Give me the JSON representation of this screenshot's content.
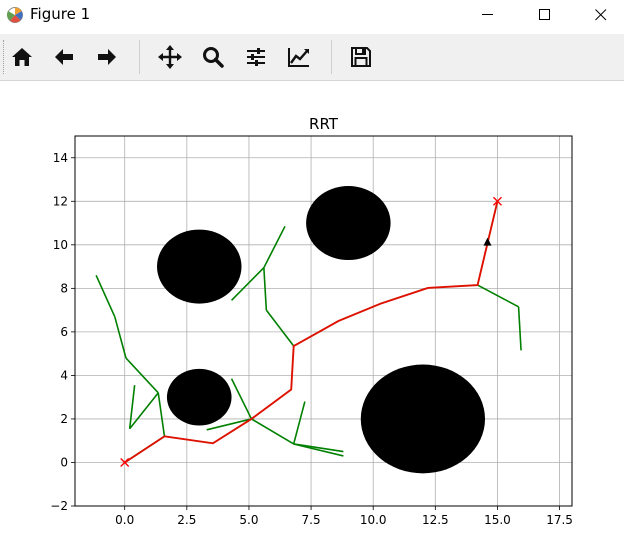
{
  "window": {
    "title": "Figure 1",
    "app_icon": "matplotlib-icon",
    "controls": [
      "minimize-icon",
      "maximize-icon",
      "close-icon"
    ]
  },
  "toolbar": {
    "buttons": [
      {
        "name": "home-button",
        "icon": "home-icon"
      },
      {
        "name": "back-button",
        "icon": "back-arrow-icon"
      },
      {
        "name": "forward-button",
        "icon": "forward-arrow-icon"
      },
      {
        "name": "pan-button",
        "icon": "move-icon"
      },
      {
        "name": "zoom-button",
        "icon": "zoom-icon"
      },
      {
        "name": "subplots-button",
        "icon": "sliders-icon"
      },
      {
        "name": "edit-axes-button",
        "icon": "chart-edit-icon"
      },
      {
        "name": "save-button",
        "icon": "save-icon"
      }
    ]
  },
  "chart_data": {
    "type": "line",
    "title": "RRT",
    "xlabel": "",
    "ylabel": "",
    "xlim": [
      -2,
      18
    ],
    "ylim": [
      -2,
      15
    ],
    "xticks": [
      0.0,
      2.5,
      5.0,
      7.5,
      10.0,
      12.5,
      15.0,
      17.5
    ],
    "xtick_labels": [
      "0.0",
      "2.5",
      "5.0",
      "7.5",
      "10.0",
      "12.5",
      "15.0",
      "17.5"
    ],
    "yticks": [
      -2,
      0,
      2,
      4,
      6,
      8,
      10,
      12,
      14
    ],
    "ytick_labels": [
      "−2",
      "0",
      "2",
      "4",
      "6",
      "8",
      "10",
      "12",
      "14"
    ],
    "grid": true,
    "obstacles": [
      {
        "cx": 3,
        "cy": 9,
        "r": 1.7
      },
      {
        "cx": 9,
        "cy": 11,
        "r": 1.7
      },
      {
        "cx": 3,
        "cy": 3,
        "r": 1.3
      },
      {
        "cx": 12,
        "cy": 2,
        "r": 2.5
      }
    ],
    "tree_edges": [
      [
        [
          0,
          0
        ],
        [
          1.6,
          1.2
        ]
      ],
      [
        [
          1.6,
          1.2
        ],
        [
          1.35,
          3.2
        ]
      ],
      [
        [
          1.35,
          3.2
        ],
        [
          0.2,
          1.55
        ]
      ],
      [
        [
          0.2,
          1.55
        ],
        [
          0.4,
          3.55
        ]
      ],
      [
        [
          1.35,
          3.2
        ],
        [
          0.05,
          4.8
        ]
      ],
      [
        [
          0.05,
          4.8
        ],
        [
          -0.4,
          6.7
        ]
      ],
      [
        [
          -0.4,
          6.7
        ],
        [
          -1.15,
          8.6
        ]
      ],
      [
        [
          5.1,
          2.0
        ],
        [
          3.3,
          1.5
        ]
      ],
      [
        [
          5.1,
          2.0
        ],
        [
          4.3,
          3.85
        ]
      ],
      [
        [
          5.1,
          2.0
        ],
        [
          6.8,
          0.85
        ]
      ],
      [
        [
          6.8,
          0.85
        ],
        [
          7.25,
          2.8
        ]
      ],
      [
        [
          6.8,
          0.85
        ],
        [
          8.8,
          0.3
        ]
      ],
      [
        [
          6.8,
          0.85
        ],
        [
          8.8,
          0.5
        ]
      ],
      [
        [
          6.8,
          5.35
        ],
        [
          5.7,
          7.0
        ]
      ],
      [
        [
          5.7,
          7.0
        ],
        [
          5.6,
          8.95
        ]
      ],
      [
        [
          5.6,
          8.95
        ],
        [
          4.3,
          7.45
        ]
      ],
      [
        [
          5.6,
          8.95
        ],
        [
          6.45,
          10.85
        ]
      ],
      [
        [
          14.2,
          8.15
        ],
        [
          15.85,
          7.15
        ]
      ],
      [
        [
          15.85,
          7.15
        ],
        [
          15.95,
          5.15
        ]
      ]
    ],
    "path": [
      [
        0,
        0
      ],
      [
        1.6,
        1.2
      ],
      [
        3.55,
        0.88
      ],
      [
        5.1,
        2.0
      ],
      [
        6.7,
        3.35
      ],
      [
        6.8,
        5.35
      ],
      [
        8.6,
        6.5
      ],
      [
        10.3,
        7.3
      ],
      [
        12.2,
        8.02
      ],
      [
        14.2,
        8.15
      ],
      [
        15.0,
        12.0
      ]
    ],
    "start": [
      0,
      0
    ],
    "goal": [
      15,
      12
    ],
    "marker": [
      14.6,
      10.1
    ],
    "colors": {
      "tree": "#008000",
      "path": "#dd1100",
      "start_goal": "#ff0000",
      "obstacle": "#000000",
      "grid": "#b0b0b0",
      "marker": "#000000"
    }
  }
}
